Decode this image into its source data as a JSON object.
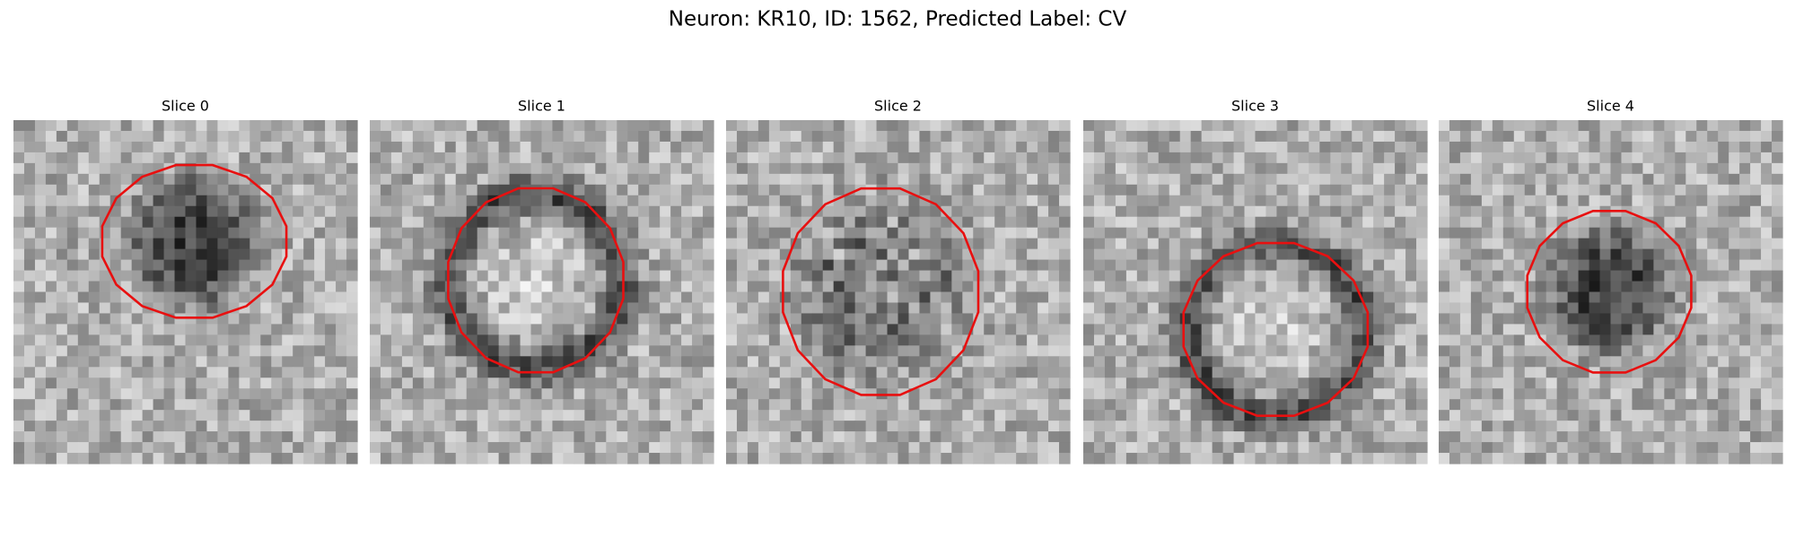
{
  "title": "Neuron: KR10, ID: 1562, Predicted Label: CV",
  "panels": [
    {
      "title": "Slice 0"
    },
    {
      "title": "Slice 1"
    },
    {
      "title": "Slice 2"
    },
    {
      "title": "Slice 3"
    },
    {
      "title": "Slice 4"
    }
  ]
}
